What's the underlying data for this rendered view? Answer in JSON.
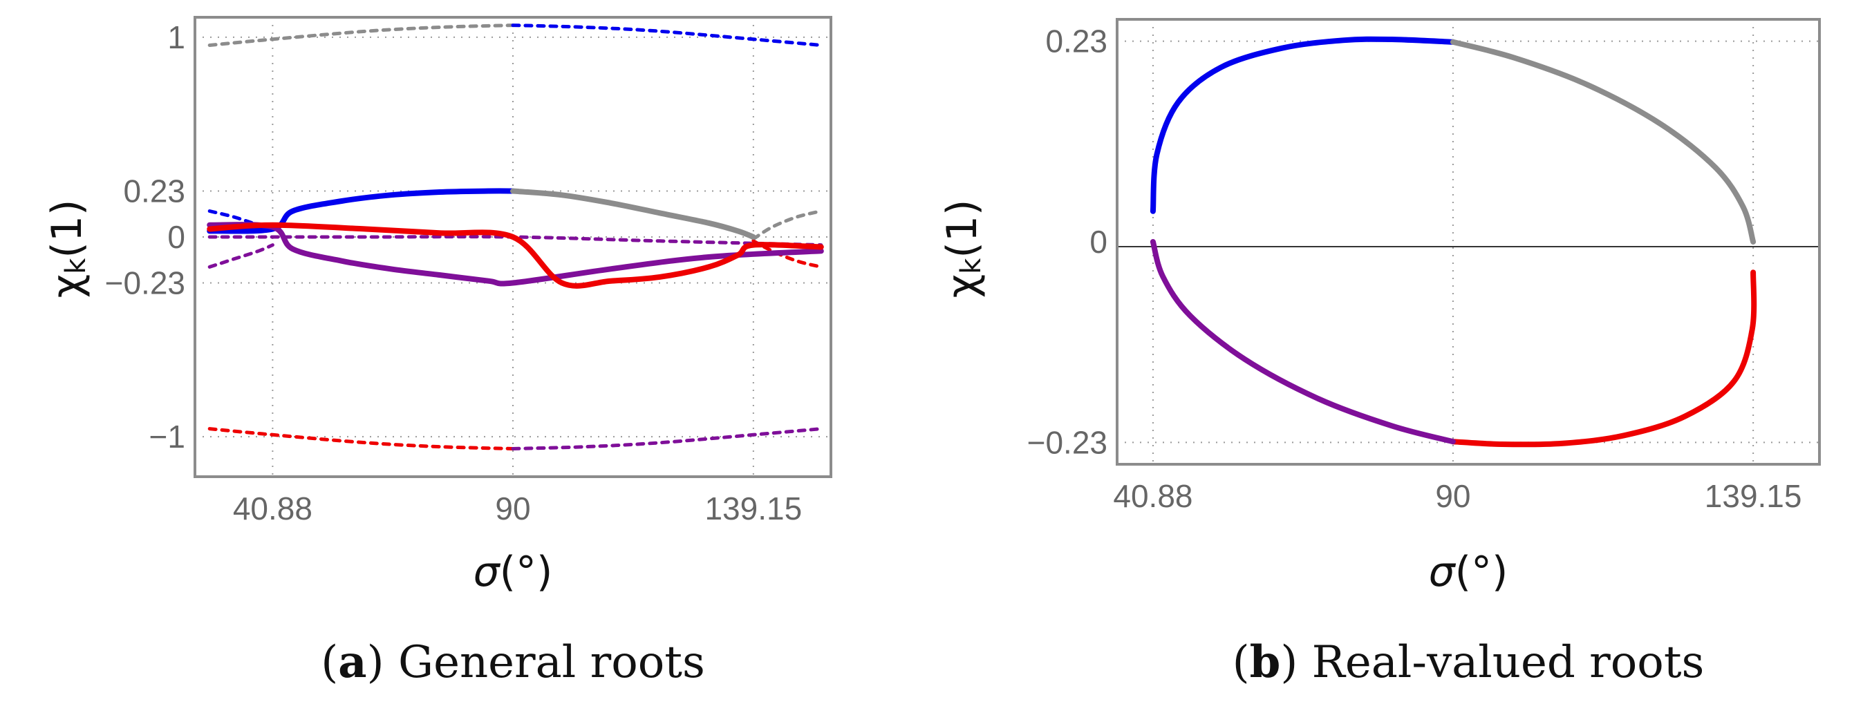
{
  "figure": {
    "colors": {
      "blue": "#0000ee",
      "gray": "#8c8c8c",
      "red": "#ee0000",
      "purple": "#7f0f99",
      "frame": "#8c8c8c",
      "grid": "#999999"
    }
  },
  "chart_data": [
    {
      "id": "a",
      "type": "line",
      "title": "",
      "caption_key": "a",
      "caption": "General roots",
      "xlabel_symbol": "σ",
      "xlabel_unit": "(°)",
      "ylabel_symbol": "χ",
      "ylabel_sub": "k",
      "ylabel_arg": "(1)",
      "xlim": [
        25,
        155
      ],
      "ylim": [
        -1.2,
        1.1
      ],
      "x_ticks": [
        40.88,
        90,
        139.15
      ],
      "x_tick_labels": [
        "40.88",
        "90",
        "139.15"
      ],
      "y_ticks": [
        1,
        0.23,
        0,
        -0.23,
        -1
      ],
      "y_tick_labels": [
        "1",
        "0.23",
        "0",
        "−0.23",
        "−1"
      ],
      "series": [
        {
          "name": "upper dashed root (gray)",
          "color": "gray",
          "style": "dashed",
          "x": [
            28,
            40.88,
            60,
            75,
            90
          ],
          "y": [
            0.96,
            0.99,
            1.03,
            1.05,
            1.06
          ]
        },
        {
          "name": "upper dashed root (blue)",
          "color": "blue",
          "style": "dashed",
          "x": [
            90,
            105,
            120,
            139.15,
            153
          ],
          "y": [
            1.06,
            1.05,
            1.03,
            0.99,
            0.96
          ]
        },
        {
          "name": "lower dashed root (red)",
          "color": "red",
          "style": "dashed",
          "x": [
            28,
            40.88,
            60,
            75,
            90
          ],
          "y": [
            -0.96,
            -0.99,
            -1.03,
            -1.05,
            -1.06
          ]
        },
        {
          "name": "lower dashed root (purple)",
          "color": "purple",
          "style": "dashed",
          "x": [
            90,
            105,
            120,
            139.15,
            153
          ],
          "y": [
            -1.06,
            -1.05,
            -1.03,
            -0.99,
            -0.96
          ]
        },
        {
          "name": "small dashed (blue)",
          "color": "blue",
          "style": "dashed",
          "x": [
            28,
            33,
            38,
            40.88
          ],
          "y": [
            0.13,
            0.1,
            0.06,
            0.04
          ]
        },
        {
          "name": "small dashed (purple, left)",
          "color": "purple",
          "style": "dashed",
          "x": [
            28,
            33,
            38,
            40.88
          ],
          "y": [
            -0.15,
            -0.11,
            -0.07,
            -0.04
          ]
        },
        {
          "name": "small dashed (gray)",
          "color": "gray",
          "style": "dashed",
          "x": [
            139.15,
            143,
            148,
            153
          ],
          "y": [
            -0.01,
            0.05,
            0.1,
            0.13
          ]
        },
        {
          "name": "small dashed (red)",
          "color": "red",
          "style": "dashed",
          "x": [
            139.15,
            143,
            148,
            153
          ],
          "y": [
            -0.02,
            -0.07,
            -0.12,
            -0.15
          ]
        },
        {
          "name": "middle dashed root (purple)",
          "color": "purple",
          "style": "dashed",
          "x": [
            28,
            60,
            90,
            120,
            153
          ],
          "y": [
            0.0,
            0.0,
            0.0,
            -0.02,
            -0.04
          ]
        },
        {
          "name": "thick root (blue)",
          "color": "blue",
          "style": "solid",
          "x": [
            28,
            40.88,
            45,
            55,
            65,
            75,
            85,
            90
          ],
          "y": [
            0.03,
            0.04,
            0.13,
            0.18,
            0.21,
            0.225,
            0.23,
            0.23
          ]
        },
        {
          "name": "thick root (gray)",
          "color": "gray",
          "style": "solid",
          "x": [
            90,
            100,
            110,
            120,
            130,
            136,
            139.15
          ],
          "y": [
            0.23,
            0.21,
            0.17,
            0.12,
            0.07,
            0.03,
            0.0
          ]
        },
        {
          "name": "thick root (purple)",
          "color": "purple",
          "style": "solid",
          "x": [
            28,
            40.88,
            45,
            55,
            65,
            75,
            85,
            90,
            110,
            130,
            153
          ],
          "y": [
            0.06,
            0.05,
            -0.06,
            -0.12,
            -0.16,
            -0.19,
            -0.22,
            -0.23,
            -0.16,
            -0.1,
            -0.07
          ]
        },
        {
          "name": "thick root (red)",
          "color": "red",
          "style": "solid",
          "x": [
            28,
            40.88,
            60,
            75,
            90,
            100,
            110,
            120,
            130,
            136,
            139.15,
            153
          ],
          "y": [
            0.04,
            0.06,
            0.04,
            0.02,
            0.0,
            -0.23,
            -0.22,
            -0.2,
            -0.15,
            -0.09,
            -0.04,
            -0.05
          ]
        }
      ]
    },
    {
      "id": "b",
      "type": "line",
      "title": "",
      "caption_key": "b",
      "caption": "Real-valued roots",
      "xlabel_symbol": "σ",
      "xlabel_unit": "(°)",
      "ylabel_symbol": "χ",
      "ylabel_sub": "k",
      "ylabel_arg": "(1)",
      "xlim": [
        35,
        150
      ],
      "ylim": [
        -0.255,
        0.255
      ],
      "x_ticks": [
        40.88,
        90,
        139.15
      ],
      "x_tick_labels": [
        "40.88",
        "90",
        "139.15"
      ],
      "y_ticks": [
        0.23,
        0,
        -0.23
      ],
      "y_tick_labels": [
        "0.23",
        "0",
        "−0.23"
      ],
      "series": [
        {
          "name": "real root (blue)",
          "color": "blue",
          "style": "solid",
          "x": [
            40.88,
            41.5,
            45,
            52,
            62,
            72,
            80,
            90
          ],
          "y": [
            0.035,
            0.1,
            0.16,
            0.2,
            0.222,
            0.231,
            0.232,
            0.229
          ]
        },
        {
          "name": "real root (gray)",
          "color": "gray",
          "style": "solid",
          "x": [
            90,
            100,
            112,
            124,
            133,
            137.5,
            139.15
          ],
          "y": [
            0.229,
            0.211,
            0.18,
            0.135,
            0.085,
            0.04,
            0.0
          ]
        },
        {
          "name": "real root (red)",
          "color": "red",
          "style": "solid",
          "x": [
            139.15,
            139.0,
            136,
            128,
            118,
            108,
            98,
            90
          ],
          "y": [
            -0.035,
            -0.1,
            -0.16,
            -0.2,
            -0.222,
            -0.231,
            -0.232,
            -0.229
          ]
        },
        {
          "name": "real root (purple)",
          "color": "purple",
          "style": "solid",
          "x": [
            90,
            80,
            68,
            56,
            47,
            42.5,
            40.88
          ],
          "y": [
            -0.229,
            -0.211,
            -0.18,
            -0.135,
            -0.085,
            -0.04,
            0.0
          ]
        }
      ]
    }
  ]
}
